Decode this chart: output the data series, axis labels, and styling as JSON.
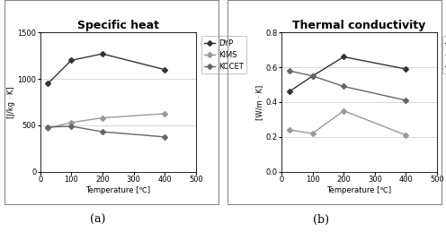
{
  "title_a": "Specific heat",
  "title_b": "Thermal conductivity",
  "xlabel": "Temperature [℃]",
  "ylabel_a": "[J/kg · K]",
  "ylabel_b": "[W/m · K]",
  "label_a": "(a)",
  "label_b": "(b)",
  "temp": [
    25,
    100,
    200,
    400
  ],
  "sh_DYP": [
    950,
    1200,
    1270,
    1100
  ],
  "sh_KIMS": [
    470,
    530,
    580,
    625
  ],
  "sh_KOCET": [
    480,
    490,
    430,
    375
  ],
  "tc_DYP": [
    0.46,
    0.55,
    0.66,
    0.59
  ],
  "tc_KIMS": [
    0.24,
    0.22,
    0.35,
    0.21
  ],
  "tc_KOCET": [
    0.58,
    0.55,
    0.49,
    0.41
  ],
  "xlim": [
    0,
    500
  ],
  "xticks": [
    0,
    100,
    200,
    300,
    400,
    500
  ],
  "ylim_a": [
    0,
    1500
  ],
  "yticks_a": [
    0,
    500,
    1000,
    1500
  ],
  "ylim_b": [
    0,
    0.8
  ],
  "yticks_b": [
    0.0,
    0.2,
    0.4,
    0.6,
    0.8
  ],
  "color_DYP": "#333333",
  "color_KIMS": "#999999",
  "color_KOCET": "#666666",
  "marker_DYP": "D",
  "marker_KIMS": "D",
  "marker_KOCET": "D",
  "legend_labels": [
    "DYP",
    "KIMS",
    "KOCET"
  ],
  "bg_color": "#ffffff",
  "plot_bg": "#ffffff",
  "fontsize_title": 9,
  "fontsize_label": 6,
  "fontsize_tick": 6,
  "fontsize_legend": 6,
  "fontsize_caption": 9,
  "linewidth": 1.0,
  "markersize": 3
}
